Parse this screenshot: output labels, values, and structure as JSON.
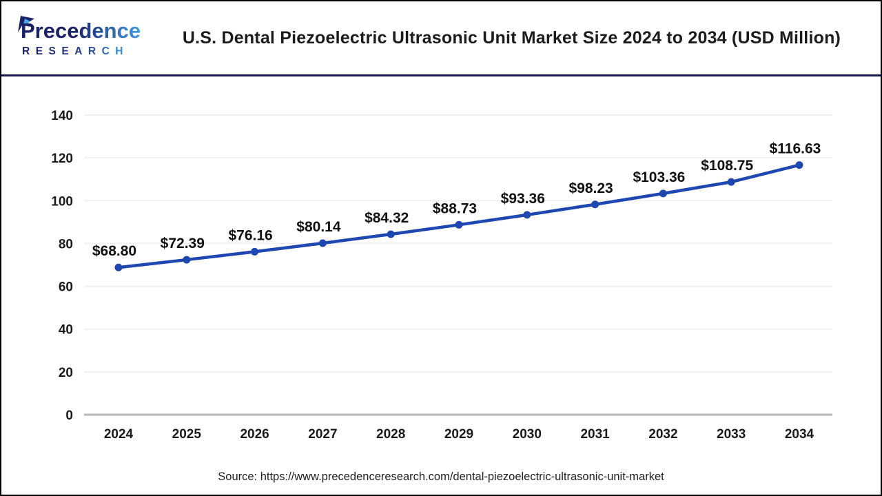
{
  "header": {
    "logo": {
      "brand_primary": "Precedence",
      "brand_secondary": "RESEARCH",
      "color_dark": "#1b2168",
      "color_light": "#3b9de4",
      "leaf_color": "#4aa8e8"
    },
    "title": "U.S. Dental Piezoelectric Ultrasonic Unit Market Size 2024 to 2034 (USD Million)"
  },
  "chart_data": {
    "type": "line",
    "title": "U.S. Dental Piezoelectric Ultrasonic Unit Market Size 2024 to 2034 (USD Million)",
    "categories": [
      "2024",
      "2025",
      "2026",
      "2027",
      "2028",
      "2029",
      "2030",
      "2031",
      "2032",
      "2033",
      "2034"
    ],
    "values": [
      68.8,
      72.39,
      76.16,
      80.14,
      84.32,
      88.73,
      93.36,
      98.23,
      103.36,
      108.75,
      116.63
    ],
    "point_labels": [
      "$68.80",
      "$72.39",
      "$76.16",
      "$80.14",
      "$84.32",
      "$88.73",
      "$93.36",
      "$98.23",
      "$103.36",
      "$108.75",
      "$116.63"
    ],
    "yticks": [
      0,
      20,
      40,
      60,
      80,
      100,
      120,
      140
    ],
    "ylim": [
      0,
      140
    ],
    "xlabel": "",
    "ylabel": "",
    "grid": true,
    "legend": "none",
    "line_color": "#1e47b2",
    "point_color": "#1e47b2",
    "data_label_color": "#111111",
    "axis_label_color": "#1a1a1a",
    "zero_axis_color": "#b7b7b7",
    "gridline_color": "#f0f0f0"
  },
  "footer": {
    "source": "Source: https://www.precedenceresearch.com/dental-piezoelectric-ultrasonic-unit-market"
  }
}
